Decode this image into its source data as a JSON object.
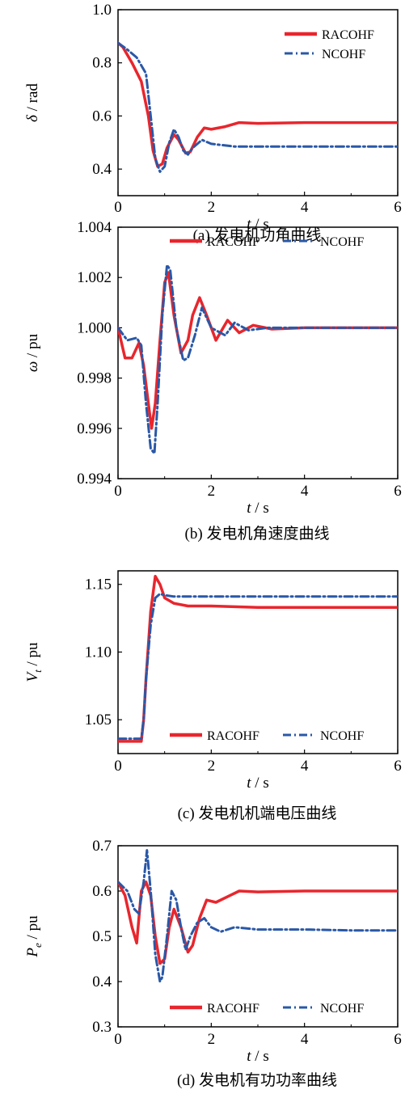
{
  "chart_data": [
    {
      "type": "line",
      "caption": "(a)  发电机功角曲线",
      "xlabel": "t / s",
      "ylabel": "δ / rad",
      "xlim": [
        0,
        6
      ],
      "ylim": [
        0.3,
        1.0
      ],
      "xticks": [
        "0",
        "2",
        "4",
        "6"
      ],
      "yticks": [
        "0.4",
        "0.6",
        "0.8",
        "1.0"
      ],
      "ytick_values": [
        0.4,
        0.6,
        0.8,
        1.0
      ],
      "legend_position": "top-right",
      "series": [
        {
          "name": "RACOHF",
          "color": "#e8262d",
          "style": "solid",
          "x": [
            0,
            0.1,
            0.3,
            0.5,
            0.65,
            0.75,
            0.85,
            0.95,
            1.05,
            1.2,
            1.3,
            1.45,
            1.55,
            1.7,
            1.85,
            2.0,
            2.3,
            2.6,
            3.0,
            4.0,
            5.0,
            6.0
          ],
          "y": [
            0.875,
            0.86,
            0.8,
            0.73,
            0.6,
            0.47,
            0.41,
            0.42,
            0.48,
            0.53,
            0.51,
            0.46,
            0.465,
            0.52,
            0.555,
            0.55,
            0.56,
            0.575,
            0.572,
            0.575,
            0.575,
            0.575
          ]
        },
        {
          "name": "NCOHF",
          "color": "#2a58a7",
          "style": "dashdot",
          "x": [
            0,
            0.2,
            0.4,
            0.6,
            0.7,
            0.8,
            0.9,
            1.0,
            1.1,
            1.2,
            1.3,
            1.4,
            1.5,
            1.6,
            1.8,
            2.0,
            2.5,
            3.0,
            4.0,
            5.0,
            6.0
          ],
          "y": [
            0.875,
            0.85,
            0.82,
            0.76,
            0.6,
            0.44,
            0.39,
            0.41,
            0.5,
            0.55,
            0.52,
            0.47,
            0.455,
            0.48,
            0.51,
            0.495,
            0.485,
            0.485,
            0.485,
            0.485,
            0.485
          ]
        }
      ]
    },
    {
      "type": "line",
      "caption": "(b)  发电机角速度曲线",
      "xlabel": "t / s",
      "ylabel": "ω / pu",
      "xlim": [
        0,
        6
      ],
      "ylim": [
        0.994,
        1.004
      ],
      "xticks": [
        "0",
        "2",
        "4",
        "6"
      ],
      "yticks": [
        "0.994",
        "0.996",
        "0.998",
        "1.000",
        "1.002",
        "1.004"
      ],
      "ytick_values": [
        0.994,
        0.996,
        0.998,
        1.0,
        1.002,
        1.004
      ],
      "legend_position": "top",
      "series": [
        {
          "name": "RACOHF",
          "color": "#e8262d",
          "style": "solid",
          "x": [
            0,
            0.15,
            0.3,
            0.45,
            0.55,
            0.65,
            0.72,
            0.8,
            0.9,
            1.0,
            1.08,
            1.2,
            1.35,
            1.5,
            1.6,
            1.75,
            1.9,
            2.1,
            2.35,
            2.6,
            2.9,
            3.3,
            4.0,
            6.0
          ],
          "y": [
            1.0,
            0.9988,
            0.9988,
            0.9994,
            0.9985,
            0.997,
            0.996,
            0.997,
            0.9995,
            1.0018,
            1.0022,
            1.0005,
            0.999,
            0.9995,
            1.0005,
            1.0012,
            1.0005,
            0.9995,
            1.0003,
            0.9998,
            1.0001,
            0.99995,
            1.0,
            1.0
          ]
        },
        {
          "name": "NCOHF",
          "color": "#2a58a7",
          "style": "dashdot",
          "x": [
            0,
            0.2,
            0.4,
            0.5,
            0.6,
            0.7,
            0.78,
            0.85,
            0.95,
            1.05,
            1.12,
            1.25,
            1.4,
            1.5,
            1.65,
            1.8,
            2.0,
            2.3,
            2.5,
            2.8,
            3.2,
            4.0,
            6.0
          ],
          "y": [
            1.0,
            0.9995,
            0.9996,
            0.9993,
            0.997,
            0.9952,
            0.995,
            0.997,
            1.0005,
            1.0025,
            1.0023,
            1.0,
            0.9987,
            0.9988,
            0.9997,
            1.0008,
            1.0,
            0.9997,
            1.0002,
            0.9999,
            1.0,
            1.0,
            1.0
          ]
        }
      ]
    },
    {
      "type": "line",
      "caption": "(c)  发电机机端电压曲线",
      "xlabel": "t / s",
      "ylabel": "V_t / pu",
      "xlim": [
        0,
        6
      ],
      "ylim": [
        1.025,
        1.16
      ],
      "xticks": [
        "0",
        "2",
        "4",
        "6"
      ],
      "yticks": [
        "1.05",
        "1.10",
        "1.15"
      ],
      "ytick_values": [
        1.05,
        1.1,
        1.15
      ],
      "legend_position": "bottom-right",
      "series": [
        {
          "name": "RACOHF",
          "color": "#e8262d",
          "style": "solid",
          "x": [
            0,
            0.5,
            0.55,
            0.6,
            0.7,
            0.8,
            0.9,
            1.0,
            1.2,
            1.5,
            2.0,
            3.0,
            4.0,
            5.0,
            6.0
          ],
          "y": [
            1.034,
            1.034,
            1.05,
            1.08,
            1.13,
            1.156,
            1.15,
            1.14,
            1.136,
            1.134,
            1.134,
            1.133,
            1.133,
            1.133,
            1.133
          ]
        },
        {
          "name": "NCOHF",
          "color": "#2a58a7",
          "style": "dashdot",
          "x": [
            0,
            0.5,
            0.55,
            0.6,
            0.7,
            0.8,
            0.9,
            1.0,
            1.2,
            1.5,
            2.0,
            3.0,
            4.0,
            5.0,
            6.0
          ],
          "y": [
            1.036,
            1.036,
            1.05,
            1.08,
            1.12,
            1.14,
            1.143,
            1.142,
            1.141,
            1.141,
            1.141,
            1.141,
            1.141,
            1.141,
            1.141
          ]
        }
      ]
    },
    {
      "type": "line",
      "caption": "(d)  发电机有功功率曲线",
      "xlabel": "t / s",
      "ylabel": "P_e / pu",
      "xlim": [
        0,
        6
      ],
      "ylim": [
        0.3,
        0.7
      ],
      "xticks": [
        "0",
        "2",
        "4",
        "6"
      ],
      "yticks": [
        "0.3",
        "0.4",
        "0.5",
        "0.6",
        "0.7"
      ],
      "ytick_values": [
        0.3,
        0.4,
        0.5,
        0.6,
        0.7
      ],
      "legend_position": "bottom-right",
      "series": [
        {
          "name": "RACOHF",
          "color": "#e8262d",
          "style": "solid",
          "x": [
            0,
            0.15,
            0.3,
            0.4,
            0.5,
            0.6,
            0.7,
            0.8,
            0.9,
            1.0,
            1.1,
            1.2,
            1.35,
            1.5,
            1.6,
            1.75,
            1.9,
            2.1,
            2.4,
            2.6,
            3.0,
            4.0,
            5.0,
            6.0
          ],
          "y": [
            0.62,
            0.59,
            0.52,
            0.485,
            0.6,
            0.62,
            0.59,
            0.5,
            0.44,
            0.45,
            0.52,
            0.56,
            0.52,
            0.465,
            0.48,
            0.54,
            0.58,
            0.575,
            0.59,
            0.6,
            0.598,
            0.6,
            0.6,
            0.6
          ]
        },
        {
          "name": "NCOHF",
          "color": "#2a58a7",
          "style": "dashdot",
          "x": [
            0,
            0.2,
            0.35,
            0.45,
            0.55,
            0.62,
            0.7,
            0.8,
            0.9,
            0.95,
            1.05,
            1.15,
            1.25,
            1.35,
            1.45,
            1.55,
            1.7,
            1.85,
            2.0,
            2.2,
            2.5,
            3.0,
            4.0,
            5.0,
            6.0
          ],
          "y": [
            0.62,
            0.6,
            0.56,
            0.55,
            0.62,
            0.69,
            0.6,
            0.46,
            0.4,
            0.41,
            0.5,
            0.6,
            0.58,
            0.52,
            0.47,
            0.5,
            0.53,
            0.54,
            0.52,
            0.51,
            0.52,
            0.515,
            0.515,
            0.513,
            0.513
          ]
        }
      ]
    }
  ]
}
